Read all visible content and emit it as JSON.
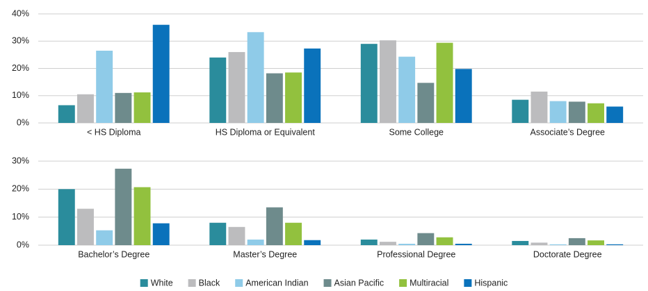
{
  "chart_data": [
    {
      "type": "bar",
      "categories": [
        "< HS Diploma",
        "HS Diploma or Equivalent",
        "Some College",
        "Associate’s Degree"
      ],
      "series": [
        {
          "name": "White",
          "color": "#2a8c9c",
          "values": [
            6.5,
            24,
            29,
            8.5
          ]
        },
        {
          "name": "Black",
          "color": "#bcbcbe",
          "values": [
            10.5,
            26,
            30.3,
            11.5
          ]
        },
        {
          "name": "American Indian",
          "color": "#8fcbe8",
          "values": [
            26.5,
            33.3,
            24.3,
            8
          ]
        },
        {
          "name": "Asian Pacific",
          "color": "#6e8b8c",
          "values": [
            11,
            18.2,
            14.7,
            7.8
          ]
        },
        {
          "name": "Multiracial",
          "color": "#92c13e",
          "values": [
            11.2,
            18.5,
            29.4,
            7.2
          ]
        },
        {
          "name": "Hispanic",
          "color": "#0a72bb",
          "values": [
            36,
            27.3,
            19.8,
            6
          ]
        }
      ],
      "ylim": [
        0,
        40
      ],
      "yticks": [
        {
          "value": 0,
          "label": "0%"
        },
        {
          "value": 10,
          "label": "10%"
        },
        {
          "value": 20,
          "label": "20%"
        },
        {
          "value": 30,
          "label": "30%"
        },
        {
          "value": 40,
          "label": "40%"
        }
      ],
      "grid": true,
      "legend": "bottom"
    },
    {
      "type": "bar",
      "categories": [
        "Bachelor’s Degree",
        "Master’s Degree",
        "Professional Degree",
        "Doctorate Degree"
      ],
      "series": [
        {
          "values": [
            20,
            8,
            2,
            1.5
          ]
        },
        {
          "values": [
            13,
            6.5,
            1.2,
            0.9
          ]
        },
        {
          "values": [
            5.3,
            2,
            0.5,
            0.3
          ]
        },
        {
          "values": [
            27.3,
            13.5,
            4.3,
            2.5
          ]
        },
        {
          "values": [
            20.7,
            8,
            2.8,
            1.7
          ]
        },
        {
          "values": [
            7.8,
            1.8,
            0.5,
            0.3
          ]
        }
      ],
      "ylim": [
        0,
        30
      ],
      "yticks": [
        {
          "value": 0,
          "label": "0%"
        },
        {
          "value": 10,
          "label": "10%"
        },
        {
          "value": 20,
          "label": "20%"
        },
        {
          "value": 30,
          "label": "30%"
        }
      ],
      "grid": true
    }
  ]
}
